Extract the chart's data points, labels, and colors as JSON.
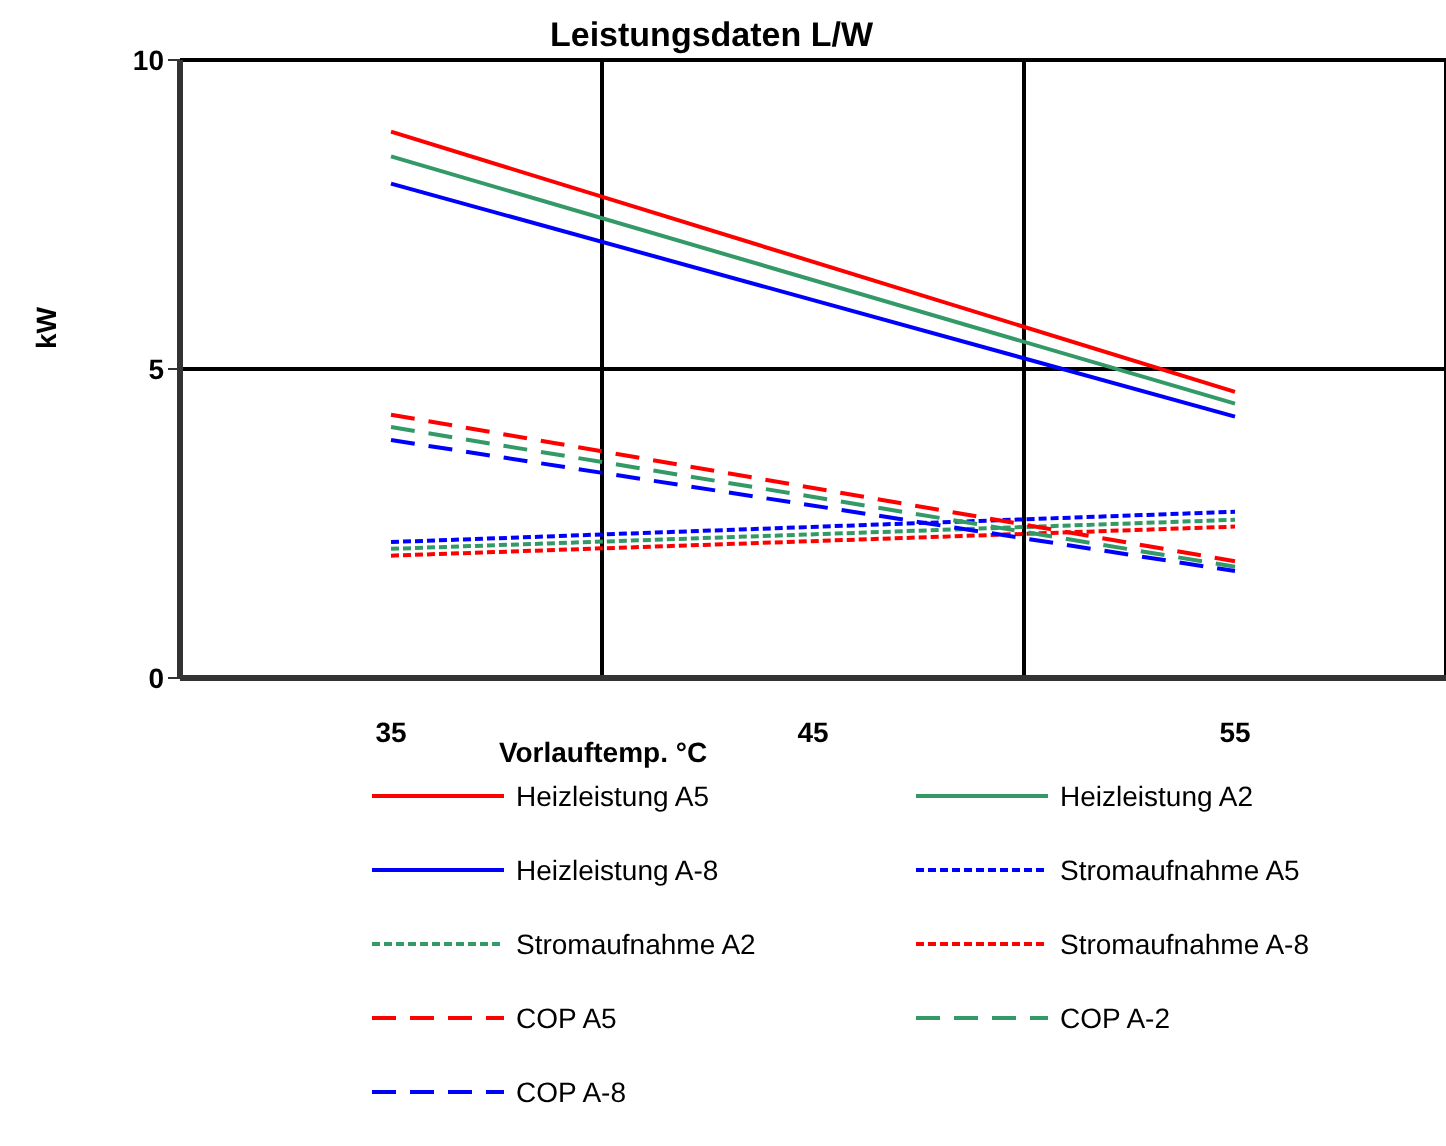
{
  "chart_data": {
    "type": "line",
    "title": "Leistungsdaten L/W",
    "xlabel": "Vorlauftemp. °C",
    "ylabel": "kW",
    "categories": [
      "35",
      "45",
      "55"
    ],
    "ylim": [
      0,
      10
    ],
    "yticks": [
      0,
      5,
      10
    ],
    "grid": true,
    "legend": "bottom",
    "marker": "none",
    "series": [
      {
        "name": "Heizleistung A5",
        "color": "#ff0000",
        "line_style": "solid",
        "values": [
          8.84,
          null,
          4.63
        ]
      },
      {
        "name": "Heizleistung A2",
        "color": "#339966",
        "line_style": "solid",
        "values": [
          8.44,
          null,
          4.44
        ]
      },
      {
        "name": "Heizleistung A-8",
        "color": "#0000ff",
        "line_style": "solid",
        "values": [
          8.0,
          null,
          4.23
        ]
      },
      {
        "name": "Stromaufnahme A5",
        "color": "#0000ff",
        "line_style": "dotted",
        "values": [
          2.2,
          null,
          2.69
        ]
      },
      {
        "name": "Stromaufnahme A2",
        "color": "#339966",
        "line_style": "dotted",
        "values": [
          2.09,
          null,
          2.56
        ]
      },
      {
        "name": "Stromaufnahme A-8",
        "color": "#ff0000",
        "line_style": "dotted",
        "values": [
          1.98,
          null,
          2.45
        ]
      },
      {
        "name": "COP A5",
        "color": "#ff0000",
        "line_style": "dashed",
        "values": [
          4.26,
          null,
          1.89
        ]
      },
      {
        "name": "COP A-2",
        "color": "#339966",
        "line_style": "dashed",
        "values": [
          4.06,
          null,
          1.8
        ]
      },
      {
        "name": "COP A-8",
        "color": "#0000ff",
        "line_style": "dashed",
        "values": [
          3.85,
          null,
          1.73
        ]
      }
    ]
  }
}
